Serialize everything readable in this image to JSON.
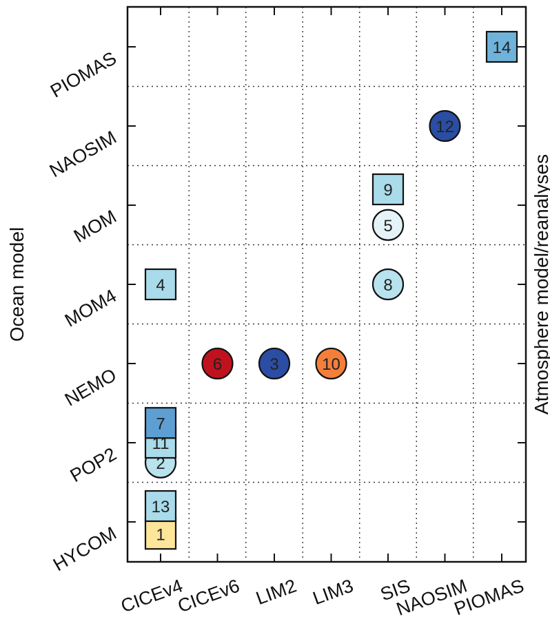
{
  "chart_data": {
    "type": "scatter",
    "title": "",
    "xlabel": "",
    "ylabel": "Ocean model",
    "y2label": "Atmosphere model/reanalyses",
    "x_categories": [
      "CICEv4",
      "CICEv6",
      "LIM2",
      "LIM3",
      "SIS",
      "NAOSIM",
      "PIOMAS"
    ],
    "y_categories": [
      "HYCOM",
      "POP2",
      "NEMO",
      "MOM4",
      "MOM",
      "NAOSIM",
      "PIOMAS"
    ],
    "grid": true,
    "colors": {
      "light_yellow": "#fde59a",
      "pale_blue": "#e4f3f7",
      "light_blue": "#a9dbea",
      "mid_blue": "#5d9fd3",
      "dark_blue": "#2b4da3",
      "red": "#c0121e",
      "orange": "#f47f3b"
    },
    "points": [
      {
        "label": "14",
        "x": "PIOMAS",
        "y": "PIOMAS",
        "y_offset": 0.0,
        "shape": "square",
        "color": "#6fb3da"
      },
      {
        "label": "12",
        "x": "NAOSIM",
        "y": "NAOSIM",
        "y_offset": 0.0,
        "shape": "circle",
        "color": "#2b4da3"
      },
      {
        "label": "9",
        "x": "SIS",
        "y": "MOM",
        "y_offset": 0.2,
        "shape": "square",
        "color": "#a9dbea"
      },
      {
        "label": "5",
        "x": "SIS",
        "y": "MOM",
        "y_offset": -0.25,
        "shape": "circle",
        "color": "#e4f3f7"
      },
      {
        "label": "8",
        "x": "SIS",
        "y": "MOM4",
        "y_offset": 0.0,
        "shape": "circle",
        "color": "#b7e2ee"
      },
      {
        "label": "4",
        "x": "CICEv4",
        "y": "MOM4",
        "y_offset": 0.0,
        "shape": "square",
        "color": "#a9dbea"
      },
      {
        "label": "6",
        "x": "CICEv6",
        "y": "NEMO",
        "y_offset": 0.0,
        "shape": "circle",
        "color": "#c0121e"
      },
      {
        "label": "3",
        "x": "LIM2",
        "y": "NEMO",
        "y_offset": 0.0,
        "shape": "circle",
        "color": "#2b4da3"
      },
      {
        "label": "10",
        "x": "LIM3",
        "y": "NEMO",
        "y_offset": 0.0,
        "shape": "circle",
        "color": "#f47f3b"
      },
      {
        "label": "2",
        "x": "CICEv4",
        "y": "POP2",
        "y_offset": -0.25,
        "shape": "circle",
        "color": "#b7e2ee"
      },
      {
        "label": "11",
        "x": "CICEv4",
        "y": "POP2",
        "y_offset": 0.0,
        "shape": "square",
        "color": "#a9dbea"
      },
      {
        "label": "7",
        "x": "CICEv4",
        "y": "POP2",
        "y_offset": 0.25,
        "shape": "square",
        "color": "#5d9fd3"
      },
      {
        "label": "1",
        "x": "CICEv4",
        "y": "HYCOM",
        "y_offset": -0.15,
        "shape": "square",
        "color": "#fde59a"
      },
      {
        "label": "13",
        "x": "CICEv4",
        "y": "HYCOM",
        "y_offset": 0.2,
        "shape": "square",
        "color": "#a9dbea"
      }
    ]
  }
}
